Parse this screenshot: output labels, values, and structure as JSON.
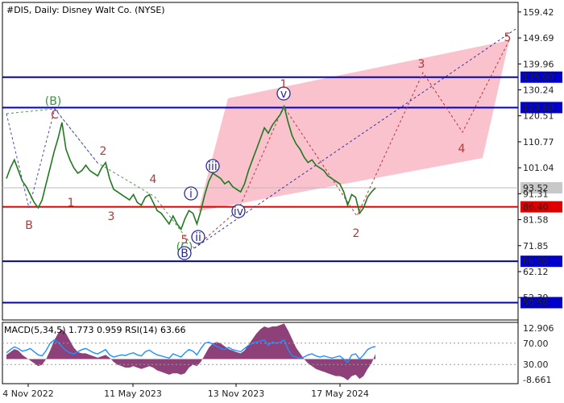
{
  "chart_data": {
    "type": "line",
    "title": "#DIS, Daily:  Disney Walt Co. (NYSE)",
    "x_ticks": [
      "4 Nov 2022",
      "11 May 2023",
      "13 Nov 2023",
      "17 May 2024"
    ],
    "main_panel": {
      "ylim": [
        44.0,
        163.0
      ],
      "y_ticks": [
        159.42,
        149.69,
        139.96,
        130.24,
        120.51,
        110.77,
        101.04,
        91.31,
        81.58,
        71.85,
        62.12,
        52.39
      ],
      "current_price": 93.52,
      "levels": [
        {
          "value": 135.0,
          "label": "135.00",
          "color": "#0000cc"
        },
        {
          "value": 123.6,
          "label": "123.60",
          "color": "#0000cc"
        },
        {
          "value": 86.4,
          "label": "86.40",
          "color": "#dd0000"
        },
        {
          "value": 66.0,
          "label": "66.00",
          "color": "#0000cc"
        },
        {
          "value": 50.5,
          "label": "50.50",
          "color": "#0000cc"
        }
      ],
      "price_series": {
        "x": [
          0,
          5,
          10,
          15,
          20,
          25,
          30,
          35,
          40,
          45,
          50,
          55,
          60,
          65,
          70,
          75,
          80,
          85,
          90,
          95,
          100,
          105,
          110,
          115,
          120,
          125,
          130,
          135,
          140,
          145,
          150,
          155,
          160,
          165,
          170,
          175,
          180,
          185,
          190,
          195,
          200,
          205,
          210,
          215,
          220,
          225,
          230,
          235,
          240,
          245,
          250,
          255,
          260,
          265,
          270,
          275,
          280,
          285,
          290,
          295,
          300,
          305,
          310,
          315,
          320,
          325,
          330,
          335,
          340,
          345,
          350,
          355,
          360,
          365,
          370,
          375,
          380,
          385,
          390,
          395,
          400,
          405,
          410,
          415,
          420,
          425,
          430,
          435,
          440,
          445,
          450,
          455,
          460,
          465
        ],
        "y": [
          97,
          101,
          104,
          100,
          96,
          94,
          91,
          88,
          86,
          89,
          95,
          101,
          107,
          112,
          118,
          108,
          104,
          101,
          99,
          100,
          102,
          100,
          99,
          98,
          101,
          103,
          97,
          93,
          92,
          91,
          90,
          89,
          91,
          88,
          87,
          90,
          91,
          88,
          85,
          84,
          82,
          80,
          83,
          80,
          78,
          82,
          85,
          84,
          80,
          85,
          91,
          96,
          99,
          98,
          97,
          95,
          96,
          94,
          93,
          92,
          95,
          100,
          104,
          108,
          112,
          116,
          114,
          117,
          119,
          121,
          124,
          118,
          113,
          110,
          108,
          105,
          103,
          104,
          102,
          101,
          100,
          98,
          97,
          96,
          95,
          92,
          87,
          91,
          90,
          84,
          86,
          90,
          92,
          93.5
        ]
      },
      "wave_labels": [
        {
          "text": "(B)",
          "color": "#339933",
          "circled": false
        },
        {
          "text": "C",
          "color": "#b03a3a",
          "circled": false
        },
        {
          "text": "B",
          "color": "#b03a3a",
          "circled": false
        },
        {
          "text": "1",
          "color": "#b03a3a",
          "circled": false
        },
        {
          "text": "2",
          "color": "#b03a3a",
          "circled": false
        },
        {
          "text": "3",
          "color": "#b03a3a",
          "circled": false
        },
        {
          "text": "4",
          "color": "#b03a3a",
          "circled": false
        },
        {
          "text": "5",
          "color": "#b03a3a",
          "circled": false
        },
        {
          "text": "(C)",
          "color": "#339933",
          "circled": false
        },
        {
          "text": "B",
          "color": "#2a2a9a",
          "circled": true
        },
        {
          "text": "i",
          "color": "#2a2a9a",
          "circled": true
        },
        {
          "text": "ii",
          "color": "#2a2a9a",
          "circled": true
        },
        {
          "text": "iii",
          "color": "#2a2a9a",
          "circled": true
        },
        {
          "text": "iv",
          "color": "#2a2a9a",
          "circled": true
        },
        {
          "text": "v",
          "color": "#2a2a9a",
          "circled": true
        },
        {
          "text": "1",
          "color": "#b03a3a",
          "circled": false
        },
        {
          "text": "2",
          "color": "#b03a3a",
          "circled": false
        },
        {
          "text": "3",
          "color": "#b03a3a",
          "circled": false
        },
        {
          "text": "4",
          "color": "#b03a3a",
          "circled": false
        },
        {
          "text": "5",
          "color": "#b03a3a",
          "circled": false
        }
      ]
    },
    "indicator_panel": {
      "label": "MACD(5,34,5) 1.773 0.959 RSI(14) 63.66",
      "macd_axis_label": "12.906",
      "rsi_levels": [
        "70.00",
        "30.00"
      ],
      "bottom_label": "-8.661",
      "rsi_values": [
        52,
        58,
        63,
        60,
        55,
        57,
        60,
        54,
        48,
        46,
        56,
        70,
        76,
        72,
        64,
        56,
        52,
        50,
        54,
        58,
        60,
        56,
        52,
        50,
        54,
        58,
        48,
        44,
        46,
        48,
        47,
        50,
        52,
        48,
        46,
        54,
        57,
        52,
        48,
        46,
        44,
        42,
        50,
        47,
        44,
        52,
        58,
        55,
        48,
        60,
        70,
        72,
        68,
        64,
        60,
        58,
        62,
        58,
        56,
        54,
        60,
        66,
        70,
        72,
        74,
        76,
        66,
        72,
        70,
        72,
        76,
        58,
        46,
        44,
        42,
        44,
        48,
        50,
        46,
        44,
        46,
        44,
        42,
        44,
        46,
        40,
        34,
        48,
        50,
        40,
        48,
        58,
        62,
        64
      ],
      "macd_values": [
        1.5,
        2.5,
        3.5,
        3,
        1.5,
        0.5,
        -0.5,
        -1.5,
        -2.5,
        -2,
        0,
        3,
        6.5,
        9,
        10.5,
        9,
        6.5,
        4,
        2.5,
        2,
        2,
        1.5,
        1,
        0.5,
        1,
        1.5,
        0.5,
        -1,
        -2,
        -2.5,
        -3,
        -3,
        -2.5,
        -3,
        -3.5,
        -3,
        -2.5,
        -3,
        -4,
        -4.5,
        -5,
        -5.5,
        -5,
        -5,
        -5.5,
        -5,
        -3,
        -2,
        -2.5,
        -1,
        1.5,
        4,
        5.5,
        6,
        5.5,
        4.5,
        3.5,
        3,
        2.5,
        2,
        3,
        5,
        7,
        9,
        10.5,
        11.5,
        11,
        11.5,
        11.5,
        12,
        12.5,
        10,
        7,
        4,
        2,
        0,
        -1.5,
        -2.5,
        -3.5,
        -4,
        -4.5,
        -5,
        -5.5,
        -6,
        -6,
        -6.5,
        -7.5,
        -6,
        -5.5,
        -7,
        -6,
        -3.5,
        -1.5,
        1.8
      ]
    }
  }
}
